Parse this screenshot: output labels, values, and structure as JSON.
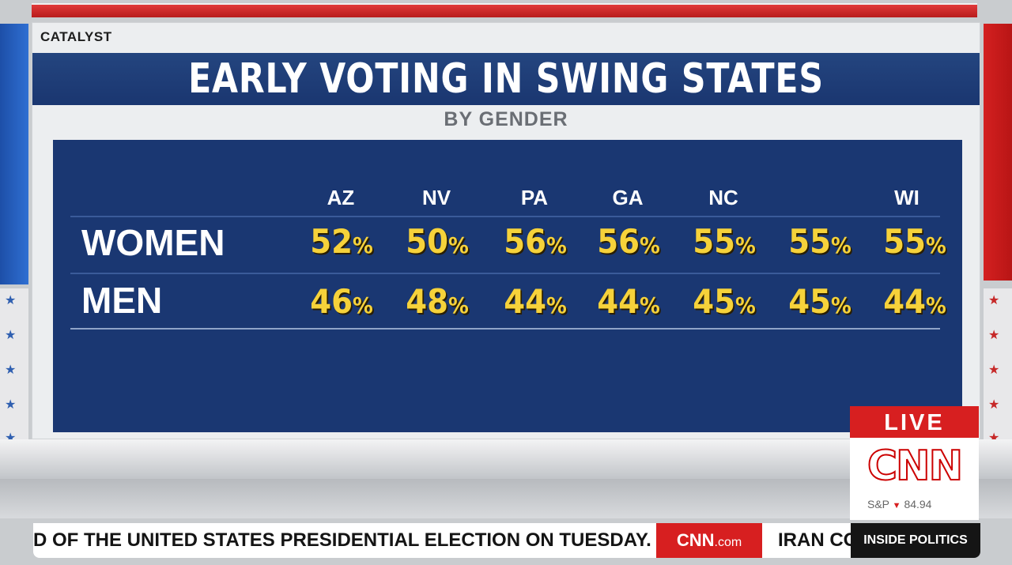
{
  "brand": {
    "catalyst": "CATALYST"
  },
  "graphic": {
    "title": "EARLY VOTING IN SWING STATES",
    "subtitle": "BY GENDER",
    "states": [
      "AZ",
      "NV",
      "PA",
      "GA",
      "NC",
      "",
      "WI"
    ],
    "rows": [
      {
        "label": "WOMEN",
        "values": [
          "52",
          "50",
          "56",
          "56",
          "55",
          "55",
          "55"
        ]
      },
      {
        "label": "MEN",
        "values": [
          "46",
          "48",
          "44",
          "44",
          "45",
          "45",
          "44"
        ]
      }
    ],
    "percent_sign": "%"
  },
  "live_bug": {
    "live": "LIVE",
    "network": "CNN",
    "market": "S&P",
    "market_arrow": "▼",
    "market_value": "84.94"
  },
  "ticker": {
    "text": "D OF THE UNITED STATES PRESIDENTIAL ELECTION ON TUESDAY.",
    "site": "CNN",
    "site_suffix": ".com",
    "next_text": "IRAN CO",
    "show": "INSIDE POLITICS"
  },
  "colors": {
    "panel": "#1a3772",
    "values": "#f6d23a",
    "live_red": "#d71f20"
  }
}
